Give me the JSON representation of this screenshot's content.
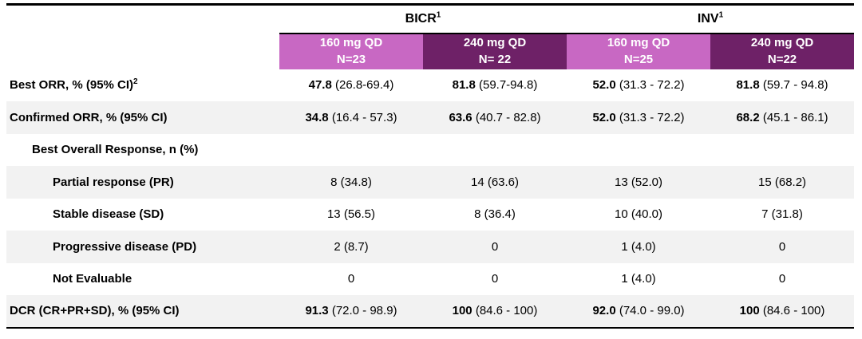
{
  "colors": {
    "header_pink": "#c868c3",
    "header_dark_purple": "#6e2167",
    "row_stripe_gray": "#f2f2f2",
    "rule_black": "#000000",
    "header_text_white": "#ffffff"
  },
  "table": {
    "group_headers": [
      {
        "label": "BICR",
        "sup": "1"
      },
      {
        "label": "INV",
        "sup": "1"
      }
    ],
    "column_headers": [
      {
        "line1": "160 mg QD",
        "line2": "N=23",
        "color": "#c868c3"
      },
      {
        "line1": "240 mg QD",
        "line2": "N= 22",
        "color": "#6e2167"
      },
      {
        "line1": "160 mg QD",
        "line2": "N=25",
        "color": "#c868c3"
      },
      {
        "line1": "240 mg QD",
        "line2": "N=22",
        "color": "#6e2167"
      }
    ],
    "rows": [
      {
        "label": "Best ORR, % (95% CI)",
        "sup": "2",
        "cells": [
          {
            "b": "47.8",
            "r": " (26.8-69.4)"
          },
          {
            "b": "81.8",
            "r": " (59.7-94.8)"
          },
          {
            "b": "52.0",
            "r": " (31.3 - 72.2)"
          },
          {
            "b": "81.8",
            "r": " (59.7 - 94.8)"
          }
        ]
      },
      {
        "label": "Confirmed ORR, % (95% CI)",
        "sup": "",
        "cells": [
          {
            "b": "34.8",
            "r": " (16.4 - 57.3)"
          },
          {
            "b": "63.6",
            "r": " (40.7 - 82.8)"
          },
          {
            "b": "52.0",
            "r": " (31.3 - 72.2)"
          },
          {
            "b": "68.2",
            "r": " (45.1 - 86.1)"
          }
        ]
      },
      {
        "label": "Best Overall Response, n (%)",
        "sup": "",
        "cells": [
          {
            "b": "",
            "r": ""
          },
          {
            "b": "",
            "r": ""
          },
          {
            "b": "",
            "r": ""
          },
          {
            "b": "",
            "r": ""
          }
        ]
      },
      {
        "label": "Partial response (PR)",
        "sup": "",
        "cells": [
          {
            "b": "",
            "r": "8 (34.8)"
          },
          {
            "b": "",
            "r": "14 (63.6)"
          },
          {
            "b": "",
            "r": "13 (52.0)"
          },
          {
            "b": "",
            "r": "15 (68.2)"
          }
        ]
      },
      {
        "label": "Stable disease (SD)",
        "sup": "",
        "cells": [
          {
            "b": "",
            "r": "13 (56.5)"
          },
          {
            "b": "",
            "r": "8 (36.4)"
          },
          {
            "b": "",
            "r": "10 (40.0)"
          },
          {
            "b": "",
            "r": "7 (31.8)"
          }
        ]
      },
      {
        "label": "Progressive disease (PD)",
        "sup": "",
        "cells": [
          {
            "b": "",
            "r": "2 (8.7)"
          },
          {
            "b": "",
            "r": "0"
          },
          {
            "b": "",
            "r": "1 (4.0)"
          },
          {
            "b": "",
            "r": "0"
          }
        ]
      },
      {
        "label": "Not Evaluable",
        "sup": "",
        "cells": [
          {
            "b": "",
            "r": "0"
          },
          {
            "b": "",
            "r": "0"
          },
          {
            "b": "",
            "r": "1 (4.0)"
          },
          {
            "b": "",
            "r": "0"
          }
        ]
      },
      {
        "label": "DCR (CR+PR+SD), % (95% CI)",
        "sup": "",
        "cells": [
          {
            "b": "91.3",
            "r": " (72.0 - 98.9)"
          },
          {
            "b": "100",
            "r": " (84.6 - 100)"
          },
          {
            "b": "92.0",
            "r": " (74.0 - 99.0)"
          },
          {
            "b": "100",
            "r": " (84.6 - 100)"
          }
        ]
      }
    ]
  }
}
